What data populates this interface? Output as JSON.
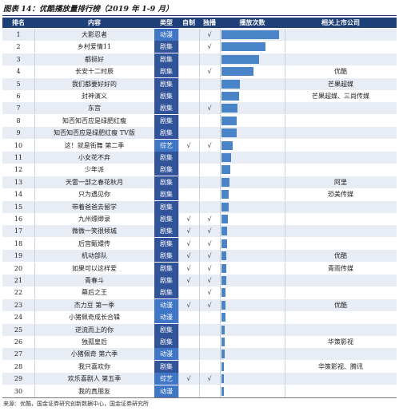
{
  "title": "图表 14：优酷播放量排行榜（2019 年 1-9 月）",
  "headers": [
    "排名",
    "内容",
    "类型",
    "自制",
    "独播",
    "播放次数",
    "相关上市公司"
  ],
  "check_glyph": "√",
  "bar_color": "#4a84c8",
  "type_colors": {
    "剧集": "#31539a",
    "动漫": "#3f76c6",
    "综艺": "#3f76c6"
  },
  "rows": [
    {
      "rank": "1",
      "name": "大影忍者",
      "type": "动漫",
      "self": "",
      "excl": "√",
      "play": 1.0,
      "company": ""
    },
    {
      "rank": "2",
      "name": "乡村爱情11",
      "type": "剧集",
      "self": "",
      "excl": "√",
      "play": 0.77,
      "company": ""
    },
    {
      "rank": "3",
      "name": "都挺好",
      "type": "剧集",
      "self": "",
      "excl": "",
      "play": 0.65,
      "company": ""
    },
    {
      "rank": "4",
      "name": "长安十二时辰",
      "type": "剧集",
      "self": "",
      "excl": "√",
      "play": 0.56,
      "company": "优酷"
    },
    {
      "rank": "5",
      "name": "我们都要好好的",
      "type": "剧集",
      "self": "",
      "excl": "",
      "play": 0.32,
      "company": "芒果超媒"
    },
    {
      "rank": "6",
      "name": "封神演义",
      "type": "剧集",
      "self": "",
      "excl": "",
      "play": 0.3,
      "company": "芒果超媒、三尚传媒"
    },
    {
      "rank": "7",
      "name": "东宫",
      "type": "剧集",
      "self": "",
      "excl": "√",
      "play": 0.28,
      "company": ""
    },
    {
      "rank": "8",
      "name": "知否知否应是绿肥红瘦",
      "type": "剧集",
      "self": "",
      "excl": "",
      "play": 0.27,
      "company": ""
    },
    {
      "rank": "9",
      "name": "知否知否应是绿肥红瘦 TV版",
      "type": "剧集",
      "self": "",
      "excl": "",
      "play": 0.26,
      "company": ""
    },
    {
      "rank": "10",
      "name": "这！就是街舞 第二季",
      "type": "综艺",
      "self": "√",
      "excl": "√",
      "play": 0.2,
      "company": ""
    },
    {
      "rank": "11",
      "name": "小女花不弃",
      "type": "剧集",
      "self": "",
      "excl": "",
      "play": 0.17,
      "company": ""
    },
    {
      "rank": "12",
      "name": "少年派",
      "type": "剧集",
      "self": "",
      "excl": "",
      "play": 0.15,
      "company": ""
    },
    {
      "rank": "13",
      "name": "天雷一部之春花秋月",
      "type": "剧集",
      "self": "",
      "excl": "",
      "play": 0.14,
      "company": "阿里"
    },
    {
      "rank": "14",
      "name": "只为遇见你",
      "type": "剧集",
      "self": "",
      "excl": "",
      "play": 0.13,
      "company": "恐美传媒"
    },
    {
      "rank": "15",
      "name": "带着爸爸去留学",
      "type": "剧集",
      "self": "",
      "excl": "",
      "play": 0.12,
      "company": ""
    },
    {
      "rank": "16",
      "name": "九州缥缈录",
      "type": "剧集",
      "self": "√",
      "excl": "√",
      "play": 0.11,
      "company": ""
    },
    {
      "rank": "17",
      "name": "微微一笑很倾城",
      "type": "剧集",
      "self": "√",
      "excl": "√",
      "play": 0.1,
      "company": ""
    },
    {
      "rank": "18",
      "name": "后宫甄嬛传",
      "type": "剧集",
      "self": "√",
      "excl": "√",
      "play": 0.095,
      "company": ""
    },
    {
      "rank": "19",
      "name": "机动部队",
      "type": "剧集",
      "self": "√",
      "excl": "√",
      "play": 0.09,
      "company": "优酷"
    },
    {
      "rank": "20",
      "name": "如果可以这样爱",
      "type": "剧集",
      "self": "√",
      "excl": "√",
      "play": 0.085,
      "company": "青雨传媒"
    },
    {
      "rank": "21",
      "name": "青春斗",
      "type": "剧集",
      "self": "√",
      "excl": "√",
      "play": 0.08,
      "company": ""
    },
    {
      "rank": "22",
      "name": "幕后之王",
      "type": "剧集",
      "self": "",
      "excl": "√",
      "play": 0.075,
      "company": ""
    },
    {
      "rank": "23",
      "name": "杰力豆 第一季",
      "type": "动漫",
      "self": "√",
      "excl": "√",
      "play": 0.07,
      "company": "优酷"
    },
    {
      "rank": "24",
      "name": "小猪佩奇成长合辑",
      "type": "动漫",
      "self": "",
      "excl": "",
      "play": 0.065,
      "company": ""
    },
    {
      "rank": "25",
      "name": "逆流而上的你",
      "type": "剧集",
      "self": "",
      "excl": "",
      "play": 0.06,
      "company": ""
    },
    {
      "rank": "26",
      "name": "独孤皇后",
      "type": "剧集",
      "self": "",
      "excl": "",
      "play": 0.055,
      "company": "华策影视"
    },
    {
      "rank": "27",
      "name": "小猪佩奇 第六季",
      "type": "动漫",
      "self": "",
      "excl": "",
      "play": 0.05,
      "company": ""
    },
    {
      "rank": "28",
      "name": "我只喜欢你",
      "type": "剧集",
      "self": "",
      "excl": "",
      "play": 0.045,
      "company": "华策影视、腾讯"
    },
    {
      "rank": "29",
      "name": "欢乐喜剧人 第五季",
      "type": "综艺",
      "self": "√",
      "excl": "√",
      "play": 0.04,
      "company": ""
    },
    {
      "rank": "30",
      "name": "我的真朋友",
      "type": "动漫",
      "self": "",
      "excl": "",
      "play": 0.035,
      "company": ""
    }
  ],
  "note": "来源：优酷，国金证券研究创新数据中心，国金证券研究所"
}
